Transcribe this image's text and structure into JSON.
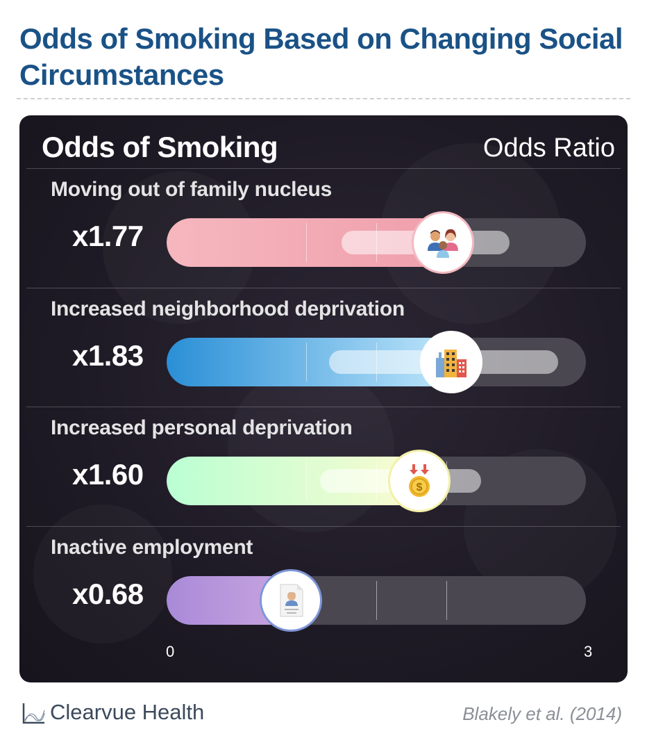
{
  "header": {
    "title": "Odds of Smoking Based on Changing Social Circumstances"
  },
  "panel": {
    "title": "Odds of Smoking",
    "subtitle": "Odds Ratio"
  },
  "footer": {
    "brand": "Clearvue Health",
    "citation": "Blakely et al. (2014)"
  },
  "chart_data": {
    "type": "bar",
    "orientation": "horizontal",
    "title": "Odds of Smoking",
    "value_axis_label": "Odds Ratio",
    "xlim": [
      0,
      3
    ],
    "tick_labels": [
      "0",
      "3"
    ],
    "gridlines": [
      0.5,
      1,
      1.5,
      2
    ],
    "categories": [
      "Moving out of family nucleus",
      "Increased neighborhood deprivation",
      "Increased personal deprivation",
      "Inactive employment"
    ],
    "values": [
      1.77,
      1.83,
      1.6,
      0.68
    ],
    "value_labels": [
      "x1.77",
      "x1.83",
      "x1.60",
      "x0.68"
    ],
    "confidence_intervals": [
      [
        1.25,
        2.45
      ],
      [
        1.16,
        2.8
      ],
      [
        1.1,
        2.25
      ],
      null
    ],
    "icons": [
      "family-icon",
      "buildings-icon",
      "coin-down-icon",
      "resume-icon"
    ],
    "bar_colors": [
      [
        "#f6b7bf",
        "#ef9fac"
      ],
      [
        "#2a8fd6",
        "#bfe6fb"
      ],
      [
        "#baffd3",
        "#fbfbd0"
      ],
      [
        "#a98ad8",
        "#c9a6e0"
      ]
    ],
    "badge_borders": [
      "#f3b9c1",
      "#ffffff",
      "#f4f0a8",
      "#7f95d8"
    ]
  }
}
